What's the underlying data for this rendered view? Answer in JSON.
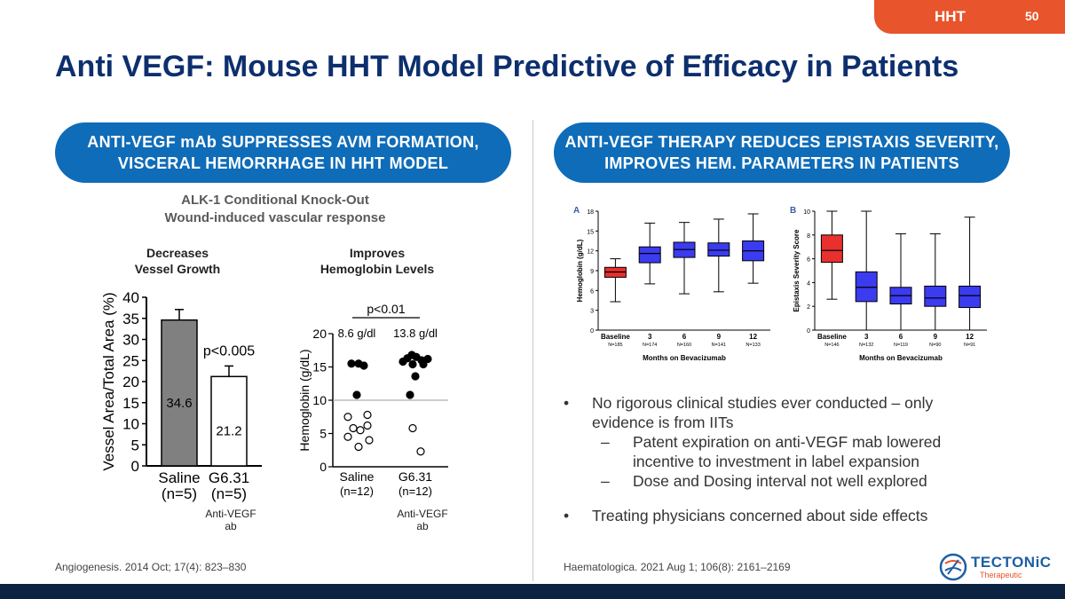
{
  "header": {
    "tag": "HHT",
    "page_number": "50",
    "title": "Anti VEGF: Mouse HHT Model Predictive of Efficacy in Patients"
  },
  "left": {
    "pill_line1": "ANTI-VEGF mAb SUPPRESSES AVM FORMATION,",
    "pill_line2": "VISCERAL HEMORRHAGE IN HHT MODEL",
    "sub_line1": "ALK-1 Conditional Knock-Out",
    "sub_line2": "Wound-induced vascular response",
    "panel1_head1": "Decreases",
    "panel1_head2": "Vessel Growth",
    "panel2_head1": "Improves",
    "panel2_head2": "Hemoglobin Levels",
    "antivegf1": "Anti-VEGF",
    "antivegf2": "ab",
    "antivegf3": "Anti-VEGF",
    "antivegf4": "ab",
    "citation": "Angiogenesis. 2014 Oct; 17(4): 823–830"
  },
  "right": {
    "pill_line1": "ANTI-VEGF THERAPY REDUCES EPISTAXIS SEVERITY,",
    "pill_line2": "IMPROVES HEM. PARAMETERS IN PATIENTS",
    "bullet1_line1": "No rigorous clinical studies ever conducted – only",
    "bullet1_line2": "evidence is from IITs",
    "sub1_line1": "Patent expiration on anti-VEGF mab lowered",
    "sub1_line2": "incentive to investment in label expansion",
    "sub2": "Dose and Dosing interval not well explored",
    "bullet2": "Treating physicians concerned about side effects",
    "bullet_symbol": "•",
    "dash_symbol": "–",
    "citation": "Haematologica. 2021 Aug 1; 106(8): 2161–2169"
  },
  "logo": {
    "name": "TECTONiC",
    "tagline": "Therapeutic"
  },
  "colors": {
    "accent": "#e8542c",
    "navy": "#0d2f6e",
    "pill": "#0f6cb8",
    "box_red": "#e8302e",
    "box_blue": "#3b3bf0"
  },
  "chart_data": [
    {
      "type": "bar",
      "id": "vessel",
      "ylabel": "Vessel Area/Total Area (%)",
      "ylim": [
        0,
        40
      ],
      "yticks": [
        0,
        5,
        10,
        15,
        20,
        25,
        30,
        35,
        40
      ],
      "categories": [
        "Saline",
        "G6.31"
      ],
      "n_labels": [
        "(n=5)",
        "(n=5)"
      ],
      "values": [
        34.6,
        21.2
      ],
      "value_labels": [
        "34.6",
        "21.2"
      ],
      "errors": [
        2.5,
        2.5
      ],
      "fills": [
        "#808080",
        "#ffffff"
      ],
      "annotation": "p<0.005"
    },
    {
      "type": "scatter",
      "id": "hemoglobin",
      "ylabel": "Hemoglobin (g/dL)",
      "ylim": [
        0,
        20
      ],
      "yticks": [
        0,
        5,
        10,
        15,
        20
      ],
      "categories": [
        "Saline",
        "G6.31"
      ],
      "n_labels": [
        "(n=12)",
        "(n=12)"
      ],
      "means": [
        "8.6 g/dl",
        "13.8 g/dl"
      ],
      "reference_line": 10,
      "annotation": "p<0.01",
      "points": [
        {
          "group": 0,
          "offset": -0.3,
          "y": 15.5,
          "filled": true
        },
        {
          "group": 0,
          "offset": 0.1,
          "y": 15.5,
          "filled": true
        },
        {
          "group": 0,
          "offset": 0.4,
          "y": 15.2,
          "filled": true
        },
        {
          "group": 0,
          "offset": 0.0,
          "y": 10.8,
          "filled": true
        },
        {
          "group": 0,
          "offset": -0.5,
          "y": 7.5,
          "filled": false
        },
        {
          "group": 0,
          "offset": 0.6,
          "y": 7.8,
          "filled": false
        },
        {
          "group": 0,
          "offset": -0.2,
          "y": 5.8,
          "filled": false
        },
        {
          "group": 0,
          "offset": 0.2,
          "y": 5.5,
          "filled": false
        },
        {
          "group": 0,
          "offset": 0.6,
          "y": 6.2,
          "filled": false
        },
        {
          "group": 0,
          "offset": -0.5,
          "y": 4.5,
          "filled": false
        },
        {
          "group": 0,
          "offset": 0.7,
          "y": 4.0,
          "filled": false
        },
        {
          "group": 0,
          "offset": 0.1,
          "y": 3.0,
          "filled": false
        },
        {
          "group": 1,
          "offset": -0.7,
          "y": 15.8,
          "filled": true
        },
        {
          "group": 1,
          "offset": -0.45,
          "y": 16.3,
          "filled": true
        },
        {
          "group": 1,
          "offset": -0.2,
          "y": 16.8,
          "filled": true
        },
        {
          "group": 1,
          "offset": 0.05,
          "y": 16.5,
          "filled": true
        },
        {
          "group": 1,
          "offset": 0.35,
          "y": 16.0,
          "filled": true
        },
        {
          "group": 1,
          "offset": 0.7,
          "y": 16.2,
          "filled": true
        },
        {
          "group": 1,
          "offset": -0.15,
          "y": 15.4,
          "filled": true
        },
        {
          "group": 1,
          "offset": 0.45,
          "y": 15.4,
          "filled": true
        },
        {
          "group": 1,
          "offset": 0.0,
          "y": 13.6,
          "filled": true
        },
        {
          "group": 1,
          "offset": -0.3,
          "y": 10.8,
          "filled": true
        },
        {
          "group": 1,
          "offset": -0.15,
          "y": 5.8,
          "filled": false
        },
        {
          "group": 1,
          "offset": 0.3,
          "y": 2.3,
          "filled": false
        }
      ]
    },
    {
      "type": "box",
      "id": "hgb",
      "panel_label": "A",
      "ylabel": "Hemoglobin (g/dL)",
      "xlabel": "Months on Bevacizumab",
      "ylim": [
        0,
        18
      ],
      "yticks": [
        0,
        3,
        6,
        9,
        12,
        15,
        18
      ],
      "categories": [
        "Baseline",
        "3",
        "6",
        "9",
        "12"
      ],
      "n_labels": [
        "N=185",
        "N=174",
        "N=160",
        "N=141",
        "N=133"
      ],
      "boxes": [
        {
          "min": 4.3,
          "q1": 8.0,
          "median": 8.8,
          "q3": 9.5,
          "max": 10.8
        },
        {
          "min": 7.0,
          "q1": 10.2,
          "median": 11.6,
          "q3": 12.6,
          "max": 16.2
        },
        {
          "min": 5.5,
          "q1": 11.0,
          "median": 12.2,
          "q3": 13.3,
          "max": 16.3
        },
        {
          "min": 5.8,
          "q1": 11.2,
          "median": 12.1,
          "q3": 13.2,
          "max": 16.8
        },
        {
          "min": 7.1,
          "q1": 10.5,
          "median": 12.0,
          "q3": 13.5,
          "max": 17.6
        }
      ]
    },
    {
      "type": "box",
      "id": "ess",
      "panel_label": "B",
      "ylabel": "Epistaxis Severity Score",
      "xlabel": "Months on Bevacizumab",
      "ylim": [
        0,
        10
      ],
      "yticks": [
        0,
        2,
        4,
        6,
        8,
        10
      ],
      "categories": [
        "Baseline",
        "3",
        "6",
        "9",
        "12"
      ],
      "n_labels": [
        "N=146",
        "N=132",
        "N=119",
        "N=90",
        "N=91"
      ],
      "boxes": [
        {
          "min": 2.6,
          "q1": 5.7,
          "median": 6.7,
          "q3": 8.0,
          "max": 10.0
        },
        {
          "min": 0.0,
          "q1": 2.4,
          "median": 3.6,
          "q3": 4.9,
          "max": 10.0
        },
        {
          "min": 0.0,
          "q1": 2.2,
          "median": 2.9,
          "q3": 3.6,
          "max": 8.1
        },
        {
          "min": 0.0,
          "q1": 2.0,
          "median": 2.7,
          "q3": 3.7,
          "max": 8.1
        },
        {
          "min": 0.0,
          "q1": 1.9,
          "median": 2.9,
          "q3": 3.7,
          "max": 9.5
        }
      ]
    }
  ]
}
